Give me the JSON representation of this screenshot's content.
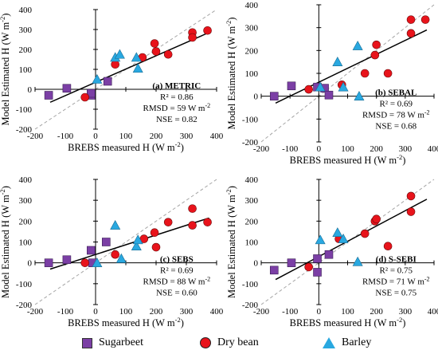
{
  "colors": {
    "sugarbeet": "#7b3fa5",
    "dry_bean": "#e8131b",
    "barley": "#29a8e0",
    "line11": "#a6a6a6",
    "regression": "#000000"
  },
  "axes": {
    "xlabel": "BREBS measured H (W m",
    "ylabel": "Model Estimated H (W m",
    "unit_sup": "-2",
    "unit_close": ")",
    "xlim": [
      -200,
      400
    ],
    "ylim": [
      -200,
      400
    ],
    "xticks": [
      "-200",
      "-100",
      "0",
      "100",
      "200",
      "300",
      "400"
    ],
    "yticks": [
      "-200",
      "-100",
      "0",
      "100",
      "200",
      "300",
      "400"
    ]
  },
  "legend": [
    {
      "label": "Sugarbeet",
      "marker": "square"
    },
    {
      "label": "Dry bean",
      "marker": "circle"
    },
    {
      "label": "Barley",
      "marker": "triangle"
    }
  ],
  "chart_data": [
    {
      "type": "scatter",
      "title": "(a) METRIC",
      "stats": {
        "r2": "R² = 0.86",
        "rmsd": "RMSD = 59 W m",
        "rmsd_sup": "-2",
        "nse": "NSE = 0.82"
      },
      "regression": {
        "x": [
          -150,
          375
        ],
        "y": [
          -65,
          285
        ]
      },
      "series": [
        {
          "name": "Sugarbeet",
          "x": [
            -155,
            -95,
            -15,
            -15,
            40
          ],
          "y": [
            -30,
            5,
            -30,
            -20,
            40
          ]
        },
        {
          "name": "Dry bean",
          "x": [
            -35,
            65,
            155,
            195,
            200,
            240,
            320,
            320,
            370
          ],
          "y": [
            -40,
            125,
            160,
            230,
            190,
            175,
            285,
            260,
            295
          ]
        },
        {
          "name": "Barley",
          "x": [
            5,
            65,
            80,
            135,
            140
          ],
          "y": [
            50,
            160,
            175,
            160,
            105
          ]
        }
      ]
    },
    {
      "type": "scatter",
      "title": "(b) SEBAL",
      "stats": {
        "r2": "R² = 0.69",
        "rmsd": "RMSD = 78 W m",
        "rmsd_sup": "-2",
        "nse": "NSE = 0.68"
      },
      "regression": {
        "x": [
          -150,
          375
        ],
        "y": [
          -30,
          290
        ]
      },
      "series": [
        {
          "name": "Sugarbeet",
          "x": [
            -155,
            -95,
            -5,
            20,
            35
          ],
          "y": [
            0,
            45,
            40,
            35,
            5
          ]
        },
        {
          "name": "Dry bean",
          "x": [
            -35,
            80,
            160,
            195,
            200,
            240,
            320,
            320,
            370
          ],
          "y": [
            30,
            50,
            100,
            180,
            225,
            100,
            335,
            275,
            335
          ]
        },
        {
          "name": "Barley",
          "x": [
            5,
            65,
            85,
            135,
            140
          ],
          "y": [
            40,
            150,
            40,
            220,
            0
          ]
        }
      ]
    },
    {
      "type": "scatter",
      "title": "(c) SEBS",
      "stats": {
        "r2": "R² = 0.69",
        "rmsd": "RMSD = 88 W m",
        "rmsd_sup": "-2",
        "nse": "NSE = 0.60"
      },
      "regression": {
        "x": [
          -150,
          375
        ],
        "y": [
          -30,
          215
        ]
      },
      "series": [
        {
          "name": "Sugarbeet",
          "x": [
            -155,
            -95,
            -15,
            -10,
            35
          ],
          "y": [
            0,
            15,
            60,
            0,
            100
          ]
        },
        {
          "name": "Dry bean",
          "x": [
            -35,
            65,
            160,
            195,
            200,
            240,
            320,
            320,
            370
          ],
          "y": [
            0,
            40,
            115,
            145,
            75,
            195,
            260,
            180,
            195
          ]
        },
        {
          "name": "Barley",
          "x": [
            5,
            65,
            85,
            135,
            140
          ],
          "y": [
            0,
            180,
            20,
            80,
            110
          ]
        }
      ]
    },
    {
      "type": "scatter",
      "title": "(d) S-SEBI",
      "stats": {
        "r2": "R² = 0.75",
        "rmsd": "RMSD = 71 W m",
        "rmsd_sup": "-2",
        "nse": "NSE = 0.75"
      },
      "regression": {
        "x": [
          -150,
          375
        ],
        "y": [
          -80,
          305
        ]
      },
      "series": [
        {
          "name": "Sugarbeet",
          "x": [
            -155,
            -95,
            -5,
            -5,
            35
          ],
          "y": [
            -35,
            0,
            20,
            -45,
            40
          ]
        },
        {
          "name": "Dry bean",
          "x": [
            -35,
            70,
            160,
            195,
            200,
            240,
            320,
            320
          ],
          "y": [
            -20,
            115,
            140,
            200,
            210,
            80,
            320,
            245
          ]
        },
        {
          "name": "Barley",
          "x": [
            5,
            65,
            85,
            135
          ],
          "y": [
            110,
            145,
            115,
            5
          ]
        }
      ]
    }
  ]
}
